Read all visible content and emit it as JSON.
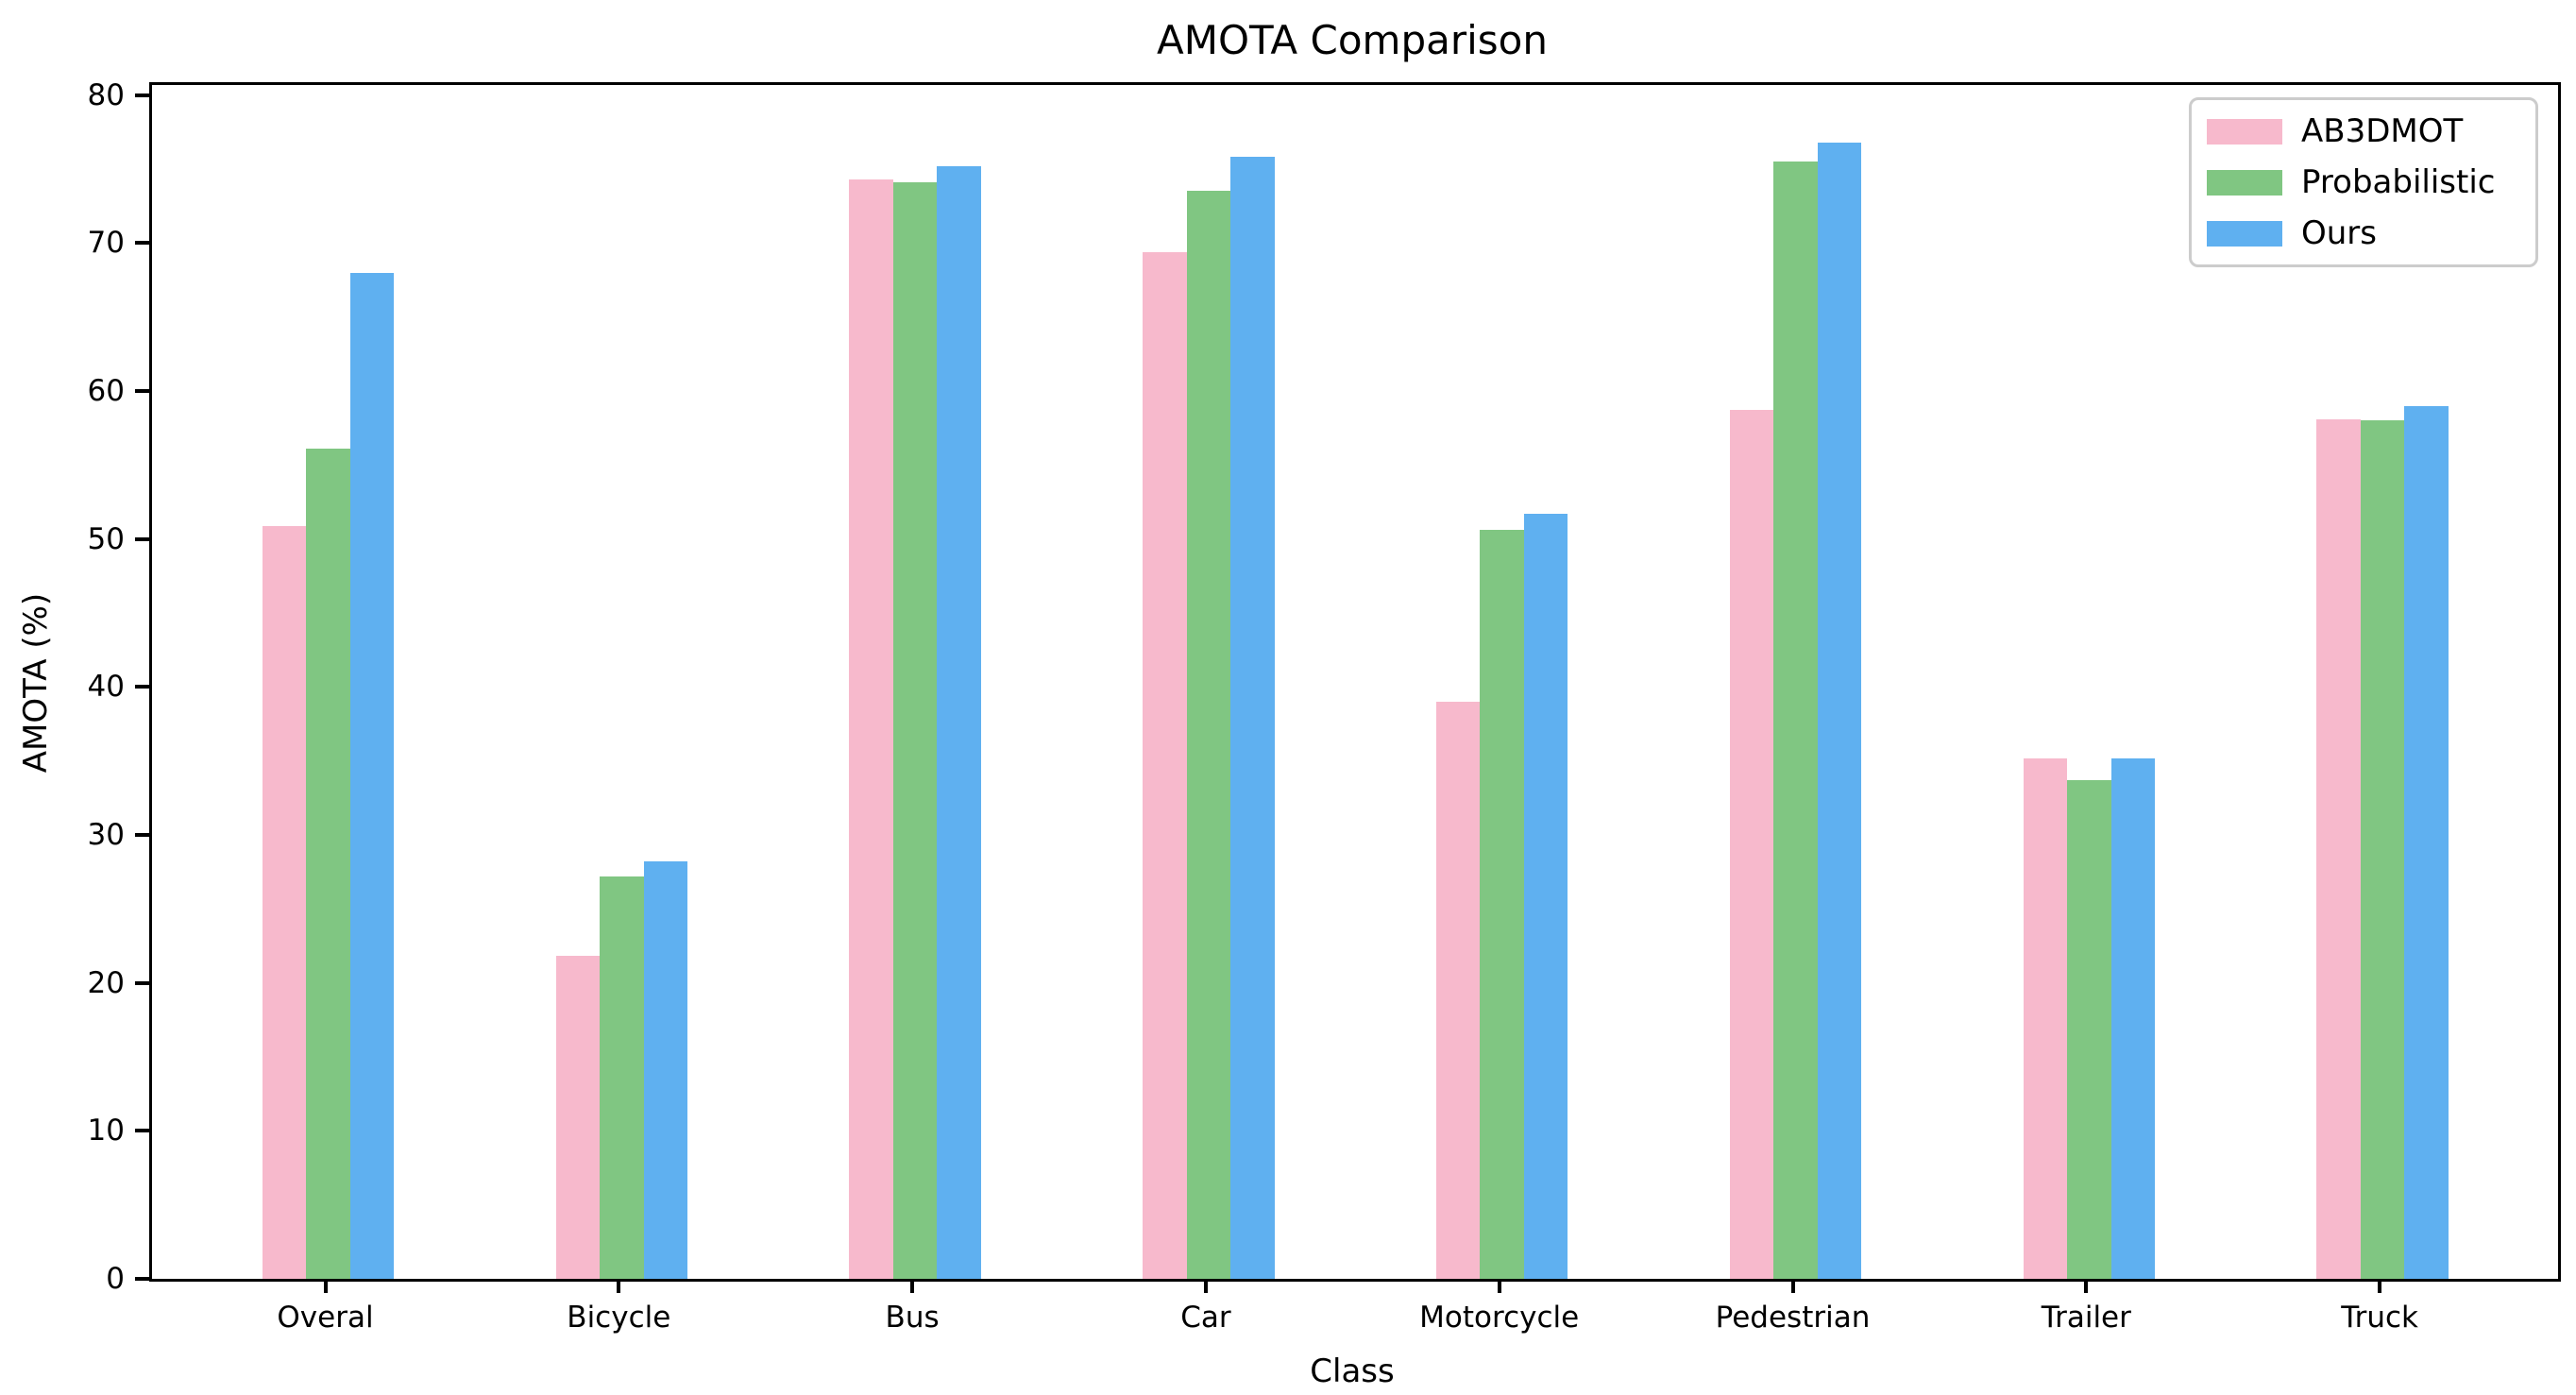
{
  "chart_data": {
    "type": "bar",
    "title": "AMOTA Comparison",
    "xlabel": "Class",
    "ylabel": "AMOTA (%)",
    "categories": [
      "Overal",
      "Bicycle",
      "Bus",
      "Car",
      "Motorcycle",
      "Pedestrian",
      "Trailer",
      "Truck"
    ],
    "series": [
      {
        "name": "AB3DMOT",
        "color": "#f7b9cc",
        "values": [
          50.9,
          21.8,
          74.3,
          69.4,
          39.0,
          58.7,
          35.2,
          58.1
        ]
      },
      {
        "name": "Probabilistic",
        "color": "#80c682",
        "values": [
          56.1,
          27.2,
          74.1,
          73.5,
          50.6,
          75.5,
          33.7,
          58.0
        ]
      },
      {
        "name": "Ours",
        "color": "#5fb0f0",
        "values": [
          68.0,
          28.2,
          75.2,
          75.8,
          51.7,
          76.8,
          35.2,
          59.0
        ]
      }
    ],
    "ylim": [
      0,
      80.7
    ],
    "yticks": [
      0,
      10,
      20,
      30,
      40,
      50,
      60,
      70,
      80
    ],
    "grid": false,
    "legend_position": "upper right",
    "legend_border_color": "#cccccc",
    "axis_color": "#000000",
    "background_color": "#ffffff"
  }
}
